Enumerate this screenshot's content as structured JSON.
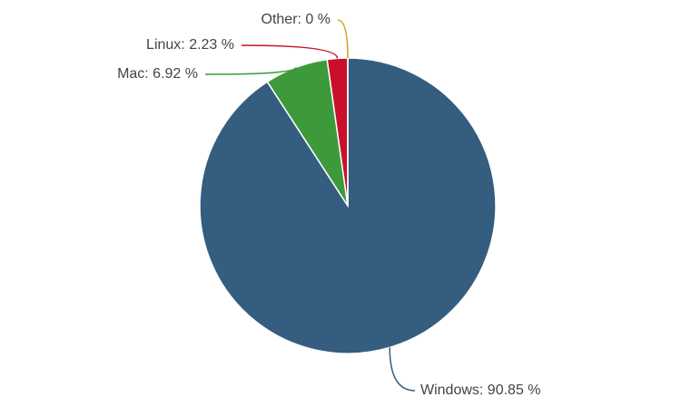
{
  "chart_data": {
    "type": "pie",
    "values": [
      90.85,
      6.92,
      2.23,
      0
    ],
    "value_labels": [
      "Windows: 90.85 %",
      "Mac: 6.92 %",
      "Linux: 2.23 %",
      "Other: 0 %"
    ],
    "colors": [
      "#345d80",
      "#3d9a3a",
      "#c8102e",
      "#d4a017"
    ]
  }
}
